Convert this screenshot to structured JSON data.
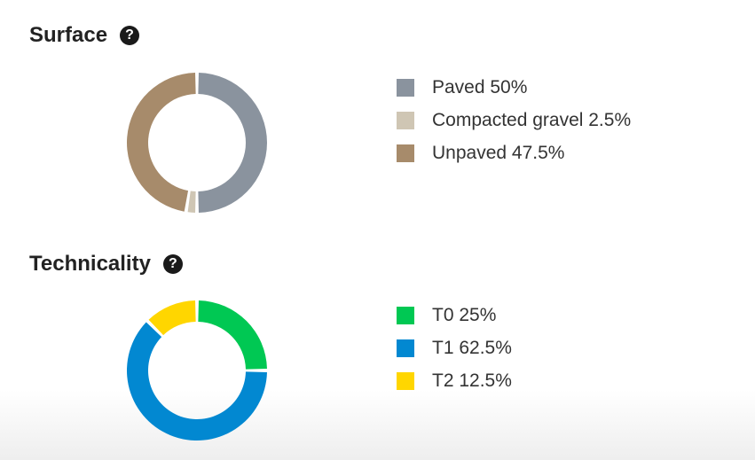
{
  "chart_data": [
    {
      "type": "pie",
      "title": "Surface",
      "help_icon": "?",
      "categories": [
        "Paved",
        "Compacted gravel",
        "Unpaved"
      ],
      "values": [
        50,
        2.5,
        47.5
      ],
      "labels": [
        "Paved 50%",
        "Compacted gravel 2.5%",
        "Unpaved 47.5%"
      ],
      "colors": [
        "#8a939e",
        "#cfc6b4",
        "#a78b6b"
      ],
      "legend": "right"
    },
    {
      "type": "pie",
      "title": "Technicality",
      "help_icon": "?",
      "categories": [
        "T0",
        "T1",
        "T2"
      ],
      "values": [
        25,
        62.5,
        12.5
      ],
      "labels": [
        "T0 25%",
        "T1 62.5%",
        "T2 12.5%"
      ],
      "colors": [
        "#00c853",
        "#0288d1",
        "#ffd600"
      ],
      "legend": "right"
    }
  ]
}
